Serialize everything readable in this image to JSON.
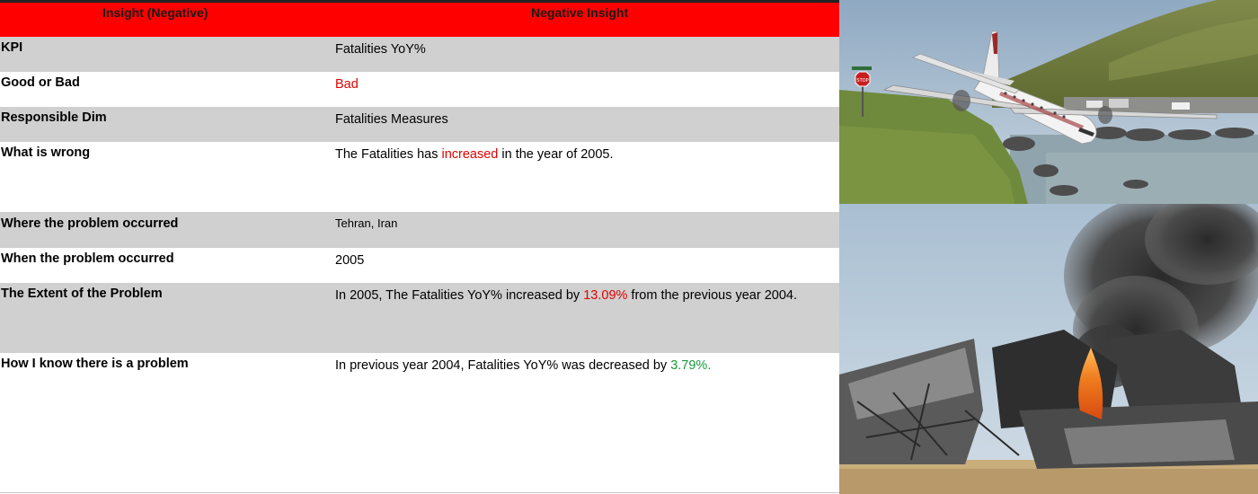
{
  "table": {
    "header": {
      "col1": "Insight (Negative)",
      "col2": "Negative Insight",
      "color": "#ff0000"
    },
    "rows": [
      {
        "label": "KPI",
        "value": "Fatalities YoY%"
      },
      {
        "label": "Good or Bad",
        "value": "Bad"
      },
      {
        "label": "Responsible Dim",
        "value": "Fatalities Measures"
      },
      {
        "label": "What is wrong",
        "value_parts": [
          "The Fatalities has ",
          "increased",
          " in the year of 2005."
        ]
      },
      {
        "label": "Where the problem occurred",
        "value": "Tehran, Iran"
      },
      {
        "label": "When the problem occurred",
        "value": "2005"
      },
      {
        "label": "The Extent of the Problem",
        "value_parts": [
          "In 2005, The Fatalities YoY%  increased by ",
          "13.09%",
          " from the previous year 2004."
        ]
      },
      {
        "label": "How I know there is a problem",
        "value_parts": [
          "In previous year 2004, Fatalities YoY%  was decreased by ",
          "3.79%."
        ]
      }
    ]
  },
  "colors": {
    "negative": "#e00000",
    "positive": "#1a9a3a",
    "row_shade": "#d0d0d0"
  },
  "photos": {
    "top": {
      "stop_sign": "STOP"
    }
  }
}
